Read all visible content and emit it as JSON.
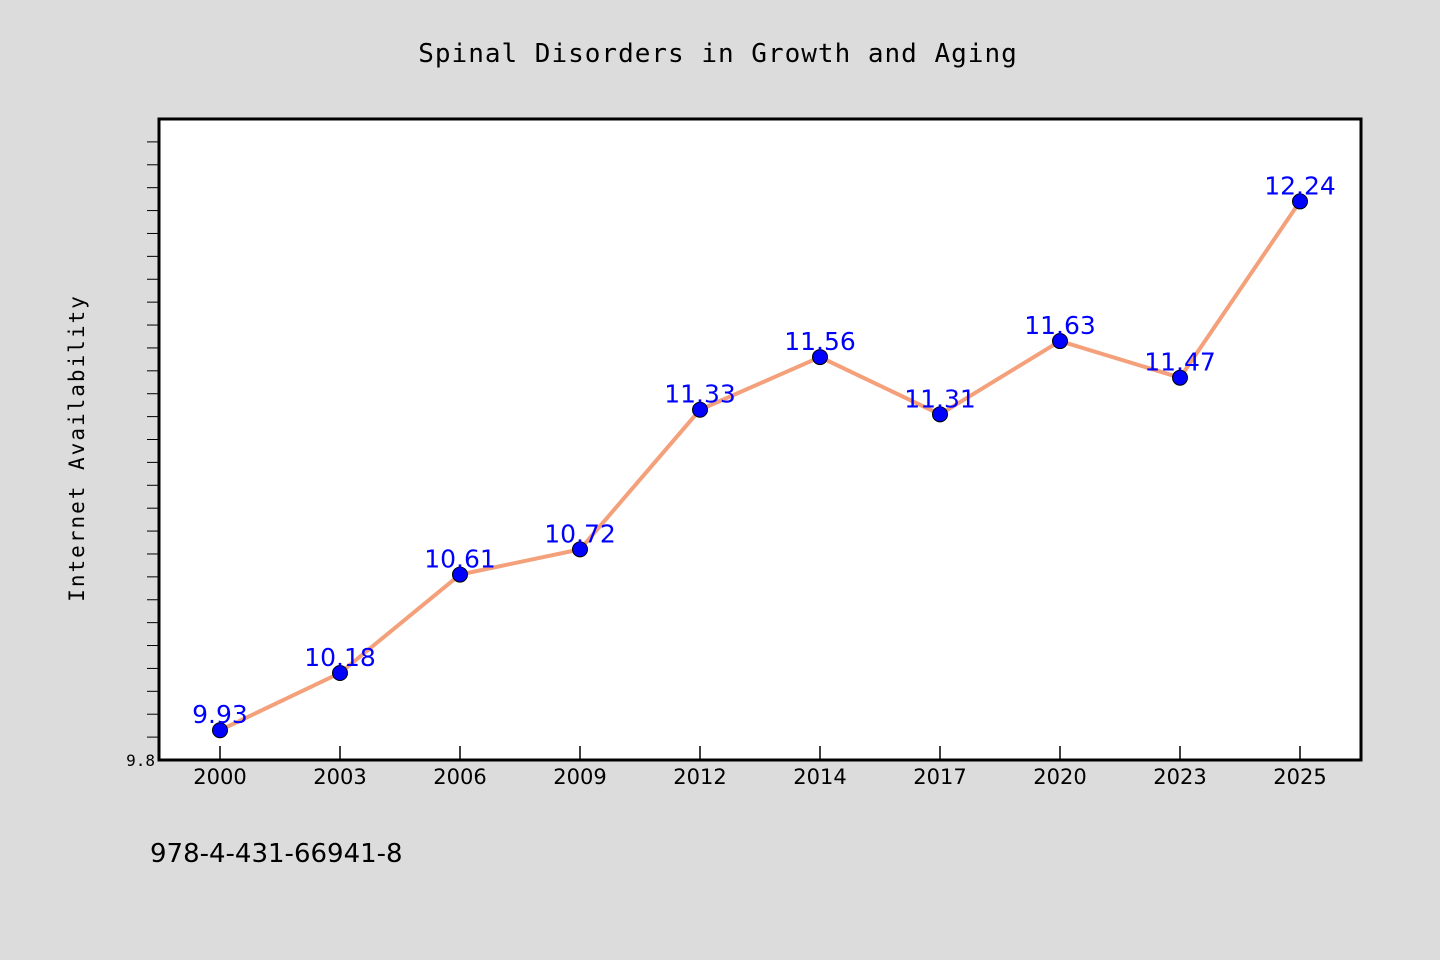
{
  "chart_data": {
    "type": "line",
    "title": "Spinal Disorders in Growth and Aging",
    "xlabel": "",
    "ylabel": "Internet Availability",
    "categories": [
      "2000",
      "2003",
      "2006",
      "2009",
      "2012",
      "2014",
      "2017",
      "2020",
      "2023",
      "2025"
    ],
    "series": [
      {
        "values": [
          9.93,
          10.18,
          10.61,
          10.72,
          11.33,
          11.56,
          11.31,
          11.63,
          11.47,
          12.24
        ],
        "data_labels": [
          "9.93",
          "10.18",
          "10.61",
          "10.72",
          "11.33",
          "11.56",
          "11.31",
          "11.63",
          "11.47",
          "12.24"
        ]
      }
    ],
    "yticks": [
      "9.8"
    ],
    "ylim": [
      9.8,
      12.6
    ],
    "grid": false,
    "legend": "none",
    "colors": {
      "background": "#dcdcdc",
      "plot_background": "#ffffff",
      "line": "#f4a07a",
      "marker": "#0000ff",
      "data_label": "#0000ff"
    }
  },
  "annotations": {
    "isbn": "978-4-431-66941-8"
  }
}
